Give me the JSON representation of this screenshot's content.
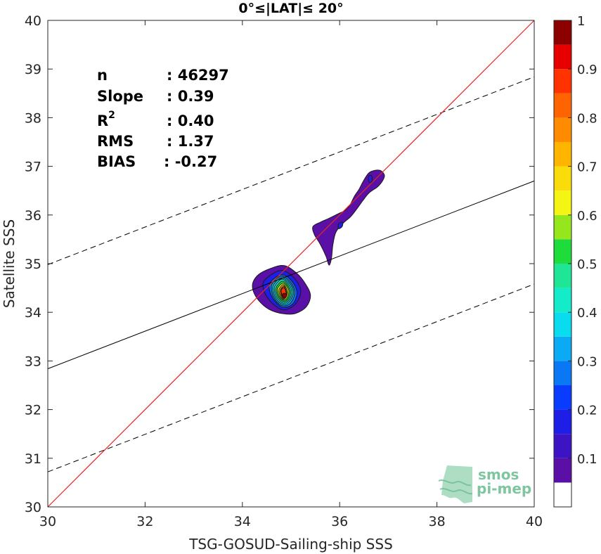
{
  "chart_data": {
    "type": "contour",
    "title": "0°≤|LAT|≤ 20°",
    "xlabel": "TSG-GOSUD-Sailing-ship SSS",
    "ylabel": "Satellite SSS",
    "xlim": [
      30,
      40
    ],
    "ylim": [
      30,
      40
    ],
    "xticks": [
      "30",
      "32",
      "34",
      "36",
      "38",
      "40"
    ],
    "yticks": [
      "30",
      "31",
      "32",
      "33",
      "34",
      "35",
      "36",
      "37",
      "38",
      "39",
      "40"
    ],
    "grid": false,
    "stats": [
      {
        "label": "n",
        "value": ": 46297"
      },
      {
        "label": "Slope",
        "value": ": 0.39"
      },
      {
        "label": "R",
        "sup": "2",
        "value": ": 0.40"
      },
      {
        "label": "RMS",
        "value": ": 1.37"
      },
      {
        "label": "BIAS",
        "value": ": -0.27"
      }
    ],
    "lines": {
      "identity": {
        "color": "#e8251f",
        "from": [
          30,
          30
        ],
        "to": [
          40,
          40
        ]
      },
      "regression": {
        "color": "#000000",
        "slope": 0.39,
        "x": [
          30,
          40
        ],
        "y": [
          32.84,
          36.7
        ]
      },
      "upper_bound": {
        "color": "#000000",
        "style": "dashed",
        "x": [
          30,
          40
        ],
        "y": [
          34.98,
          38.84
        ]
      },
      "lower_bound": {
        "color": "#000000",
        "style": "dashed",
        "x": [
          30,
          40
        ],
        "y": [
          30.72,
          34.58
        ]
      }
    },
    "density_regions": [
      {
        "level": 0.05,
        "points": [
          [
            34.22,
            34.62
          ],
          [
            34.34,
            34.78
          ],
          [
            34.58,
            34.9
          ],
          [
            34.86,
            34.96
          ],
          [
            35.12,
            34.8
          ],
          [
            35.3,
            34.58
          ],
          [
            35.4,
            34.35
          ],
          [
            35.32,
            34.12
          ],
          [
            35.1,
            33.98
          ],
          [
            34.85,
            33.97
          ],
          [
            34.55,
            34.06
          ],
          [
            34.33,
            34.25
          ],
          [
            34.22,
            34.45
          ]
        ]
      },
      {
        "level": 0.05,
        "points": [
          [
            35.45,
            35.76
          ],
          [
            35.6,
            35.85
          ],
          [
            35.78,
            35.93
          ],
          [
            35.98,
            36.03
          ],
          [
            36.12,
            36.1
          ],
          [
            36.22,
            36.22
          ],
          [
            36.3,
            36.38
          ],
          [
            36.4,
            36.53
          ],
          [
            36.5,
            36.72
          ],
          [
            36.62,
            36.88
          ],
          [
            36.82,
            36.92
          ],
          [
            36.92,
            36.82
          ],
          [
            36.88,
            36.7
          ],
          [
            36.78,
            36.58
          ],
          [
            36.6,
            36.45
          ],
          [
            36.48,
            36.3
          ],
          [
            36.35,
            36.12
          ],
          [
            36.22,
            35.96
          ],
          [
            36.06,
            35.82
          ],
          [
            35.92,
            35.64
          ],
          [
            35.86,
            35.38
          ],
          [
            35.83,
            35.1
          ],
          [
            35.78,
            34.97
          ],
          [
            35.72,
            35.15
          ],
          [
            35.6,
            35.4
          ],
          [
            35.48,
            35.6
          ]
        ]
      },
      {
        "level": 0.15,
        "points": [
          [
            34.46,
            34.66
          ],
          [
            34.78,
            34.86
          ],
          [
            35.05,
            34.72
          ],
          [
            35.2,
            34.45
          ],
          [
            35.1,
            34.18
          ],
          [
            34.85,
            34.05
          ],
          [
            34.6,
            34.2
          ],
          [
            34.44,
            34.45
          ]
        ]
      },
      {
        "level": 0.15,
        "points": [
          [
            35.98,
            35.82
          ],
          [
            36.06,
            35.85
          ],
          [
            36.05,
            35.76
          ],
          [
            35.98,
            35.72
          ]
        ]
      },
      {
        "level": 0.15,
        "points": [
          [
            36.6,
            36.8
          ],
          [
            36.66,
            36.8
          ],
          [
            36.66,
            36.68
          ],
          [
            36.6,
            36.68
          ]
        ]
      },
      {
        "level": 0.25,
        "points": [
          [
            34.58,
            34.62
          ],
          [
            34.8,
            34.77
          ],
          [
            35.0,
            34.66
          ],
          [
            35.12,
            34.42
          ],
          [
            35.04,
            34.18
          ],
          [
            34.84,
            34.1
          ],
          [
            34.66,
            34.24
          ],
          [
            34.56,
            34.45
          ]
        ]
      },
      {
        "level": 0.3,
        "points": [
          [
            34.62,
            34.6
          ],
          [
            34.8,
            34.74
          ],
          [
            34.98,
            34.63
          ],
          [
            35.08,
            34.42
          ],
          [
            35.0,
            34.2
          ],
          [
            34.84,
            34.13
          ],
          [
            34.68,
            34.25
          ],
          [
            34.6,
            34.45
          ]
        ]
      },
      {
        "level": 0.35,
        "points": [
          [
            34.65,
            34.58
          ],
          [
            34.8,
            34.71
          ],
          [
            34.96,
            34.61
          ],
          [
            35.05,
            34.42
          ],
          [
            34.97,
            34.22
          ],
          [
            34.84,
            34.16
          ],
          [
            34.7,
            34.27
          ],
          [
            34.63,
            34.45
          ]
        ]
      },
      {
        "level": 0.4,
        "points": [
          [
            34.68,
            34.56
          ],
          [
            34.81,
            34.68
          ],
          [
            34.94,
            34.59
          ],
          [
            35.02,
            34.42
          ],
          [
            34.95,
            34.24
          ],
          [
            34.84,
            34.19
          ],
          [
            34.72,
            34.29
          ],
          [
            34.66,
            34.45
          ]
        ]
      },
      {
        "level": 0.5,
        "points": [
          [
            34.71,
            34.54
          ],
          [
            34.82,
            34.64
          ],
          [
            34.92,
            34.57
          ],
          [
            34.99,
            34.42
          ],
          [
            34.93,
            34.26
          ],
          [
            34.84,
            34.22
          ],
          [
            34.74,
            34.31
          ],
          [
            34.69,
            34.45
          ]
        ]
      },
      {
        "level": 0.6,
        "points": [
          [
            34.74,
            34.52
          ],
          [
            34.83,
            34.6
          ],
          [
            34.9,
            34.55
          ],
          [
            34.96,
            34.42
          ],
          [
            34.91,
            34.28
          ],
          [
            34.84,
            34.25
          ],
          [
            34.76,
            34.33
          ],
          [
            34.72,
            34.45
          ]
        ]
      },
      {
        "level": 0.7,
        "points": [
          [
            34.77,
            34.5
          ],
          [
            34.84,
            34.57
          ],
          [
            34.89,
            34.52
          ],
          [
            34.93,
            34.41
          ],
          [
            34.89,
            34.3
          ],
          [
            34.84,
            34.27
          ],
          [
            34.78,
            34.34
          ],
          [
            34.75,
            34.44
          ]
        ]
      },
      {
        "level": 0.8,
        "points": [
          [
            34.79,
            34.48
          ],
          [
            34.85,
            34.54
          ],
          [
            34.88,
            34.5
          ],
          [
            34.91,
            34.4
          ],
          [
            34.88,
            34.31
          ],
          [
            34.84,
            34.29
          ],
          [
            34.8,
            34.35
          ],
          [
            34.78,
            34.43
          ]
        ]
      },
      {
        "level": 0.85,
        "points": [
          [
            34.8,
            34.46
          ],
          [
            34.85,
            34.51
          ],
          [
            34.88,
            34.47
          ],
          [
            34.9,
            34.39
          ],
          [
            34.87,
            34.32
          ],
          [
            34.84,
            34.31
          ],
          [
            34.81,
            34.36
          ],
          [
            34.8,
            34.42
          ]
        ]
      },
      {
        "level": 0.95,
        "points": [
          [
            34.83,
            34.38
          ],
          [
            34.9,
            34.38
          ],
          [
            34.9,
            34.31
          ],
          [
            34.83,
            34.31
          ]
        ]
      }
    ],
    "colorbar": {
      "ticks": [
        "0.1",
        "0.2",
        "0.3",
        "0.4",
        "0.5",
        "0.6",
        "0.7",
        "0.8",
        "0.9",
        "1"
      ],
      "tick_values": [
        0.1,
        0.2,
        0.3,
        0.4,
        0.5,
        0.6,
        0.7,
        0.8,
        0.9,
        1.0
      ],
      "range": [
        0,
        1
      ],
      "bands": [
        {
          "from": 0.0,
          "to": 0.05,
          "color": "#ffffff"
        },
        {
          "from": 0.05,
          "to": 0.1,
          "color": "#5a0fa6"
        },
        {
          "from": 0.1,
          "to": 0.15,
          "color": "#3c14c4"
        },
        {
          "from": 0.15,
          "to": 0.2,
          "color": "#1e1ee6"
        },
        {
          "from": 0.2,
          "to": 0.25,
          "color": "#0a3cff"
        },
        {
          "from": 0.25,
          "to": 0.3,
          "color": "#0a78f5"
        },
        {
          "from": 0.3,
          "to": 0.35,
          "color": "#0aaaf5"
        },
        {
          "from": 0.35,
          "to": 0.4,
          "color": "#0adcf0"
        },
        {
          "from": 0.4,
          "to": 0.45,
          "color": "#14ebc8"
        },
        {
          "from": 0.45,
          "to": 0.5,
          "color": "#1ee696"
        },
        {
          "from": 0.5,
          "to": 0.55,
          "color": "#1edc3c"
        },
        {
          "from": 0.55,
          "to": 0.6,
          "color": "#96e61e"
        },
        {
          "from": 0.6,
          "to": 0.65,
          "color": "#f5f514"
        },
        {
          "from": 0.65,
          "to": 0.7,
          "color": "#fadc0a"
        },
        {
          "from": 0.7,
          "to": 0.75,
          "color": "#ffb400"
        },
        {
          "from": 0.75,
          "to": 0.8,
          "color": "#ff8c00"
        },
        {
          "from": 0.8,
          "to": 0.85,
          "color": "#ff6400"
        },
        {
          "from": 0.85,
          "to": 0.9,
          "color": "#ff3200"
        },
        {
          "from": 0.9,
          "to": 0.95,
          "color": "#e60000"
        },
        {
          "from": 0.95,
          "to": 1.0,
          "color": "#8c0000"
        }
      ]
    }
  },
  "logo": {
    "line1": "smos",
    "line2": "pi-mep"
  }
}
